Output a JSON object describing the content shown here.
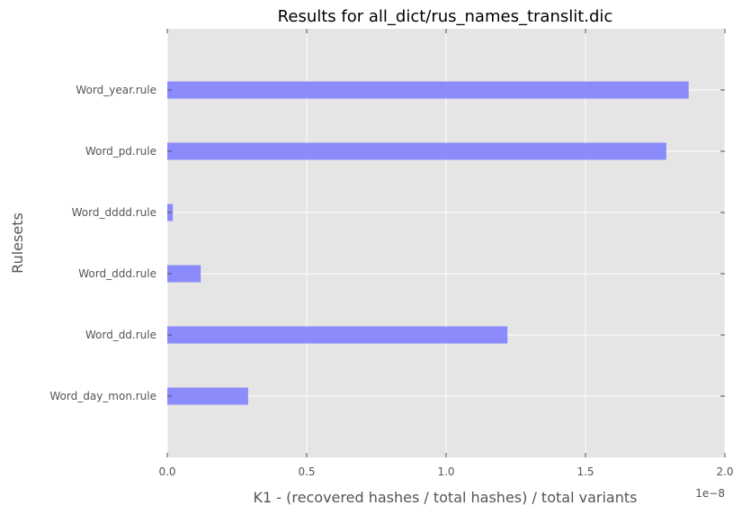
{
  "chart_data": {
    "type": "bar",
    "orientation": "horizontal",
    "title": "Results for all_dict/rus_names_translit.dic",
    "xlabel": "K1 - (recovered hashes / total hashes) / total variants",
    "ylabel": "Rulesets",
    "x_offset_label": "1e−8",
    "xlim": [
      0,
      2.0
    ],
    "xticks": [
      0.0,
      0.5,
      1.0,
      1.5,
      2.0
    ],
    "xtick_labels": [
      "0.0",
      "0.5",
      "1.0",
      "1.5",
      "2.0"
    ],
    "categories": [
      "Word_day_mon.rule",
      "Word_dd.rule",
      "Word_ddd.rule",
      "Word_dddd.rule",
      "Word_pd.rule",
      "Word_year.rule"
    ],
    "values": [
      0.29,
      1.22,
      0.12,
      0.02,
      1.79,
      1.87
    ],
    "grid": true,
    "colors": {
      "bar": "#7b7bff",
      "background": "#e5e5e5",
      "grid": "#ffffff",
      "text": "#555555",
      "title": "#000000"
    }
  }
}
